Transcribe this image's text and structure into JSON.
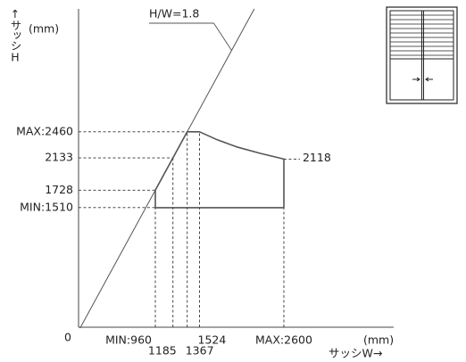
{
  "chart_data": {
    "type": "area",
    "x_label": "サッシW→",
    "y_label": "↑サッシH",
    "x_unit": "(mm)",
    "y_unit": "(mm)",
    "x": [
      960,
      960,
      1185,
      1367,
      1524,
      1750,
      2000,
      2300,
      2600,
      2600,
      960
    ],
    "values": [
      1510,
      1728,
      2133,
      2460,
      2460,
      2360,
      2270,
      2190,
      2118,
      1510,
      1510
    ],
    "value_labels": [
      null,
      null,
      null,
      null,
      null,
      null,
      null,
      null,
      "2118",
      null,
      null
    ],
    "xlim": [
      0,
      4000
    ],
    "ylim": [
      0,
      4000
    ],
    "xticks": [
      {
        "value": 960,
        "label": "MIN:960"
      },
      1185,
      1367,
      1524,
      {
        "value": 2600,
        "label": "MAX:2600"
      }
    ],
    "yticks": [
      0,
      {
        "value": 1510,
        "label": "MIN:1510"
      },
      1728,
      2133,
      {
        "value": 2460,
        "label": "MAX:2460"
      }
    ],
    "ratio_line": {
      "label": "H/W=1.8",
      "slope": 1.8
    }
  }
}
